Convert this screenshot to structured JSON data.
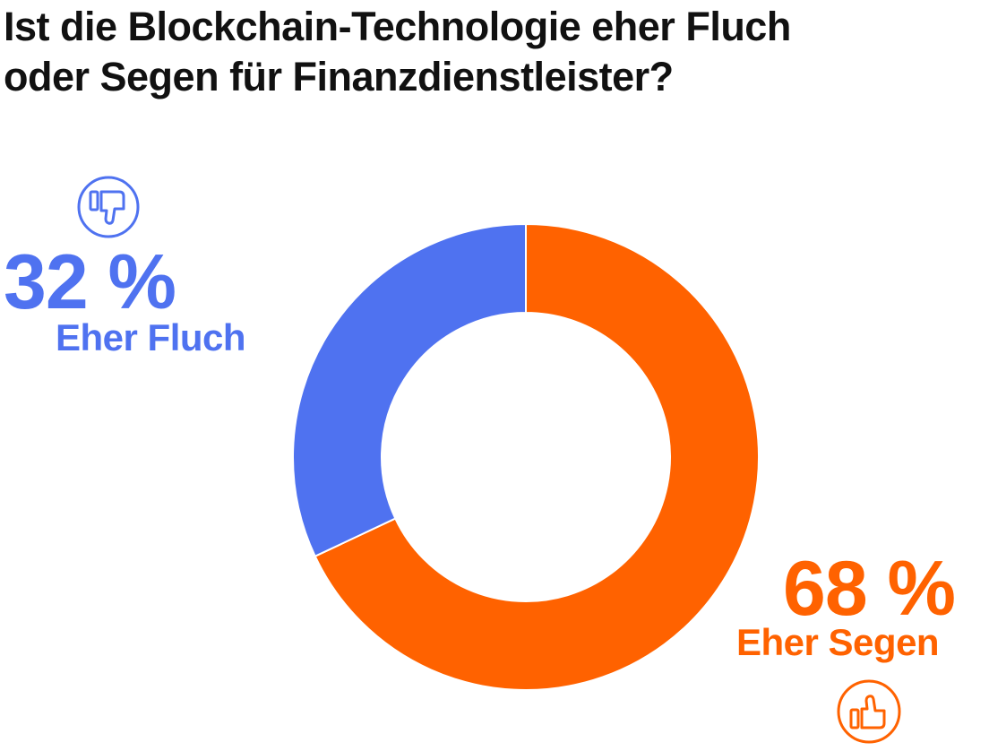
{
  "title_lines": [
    "Ist die Blockchain-Technologie eher Fluch",
    "oder Segen für Finanzdienstleister?"
  ],
  "colors": {
    "fluch": "#4F72F0",
    "segen": "#FF6200",
    "text": "#111111"
  },
  "chart_data": {
    "type": "pie",
    "variant": "donut",
    "title": "Ist die Blockchain-Technologie eher Fluch oder Segen für Finanzdienstleister?",
    "unit": "%",
    "slices": [
      {
        "label": "Eher Fluch",
        "value": 32,
        "value_label": "32 %",
        "color": "#4F72F0",
        "icon": "thumbs-down-icon"
      },
      {
        "label": "Eher Segen",
        "value": 68,
        "value_label": "68 %",
        "color": "#FF6200",
        "icon": "thumbs-up-icon"
      }
    ]
  }
}
